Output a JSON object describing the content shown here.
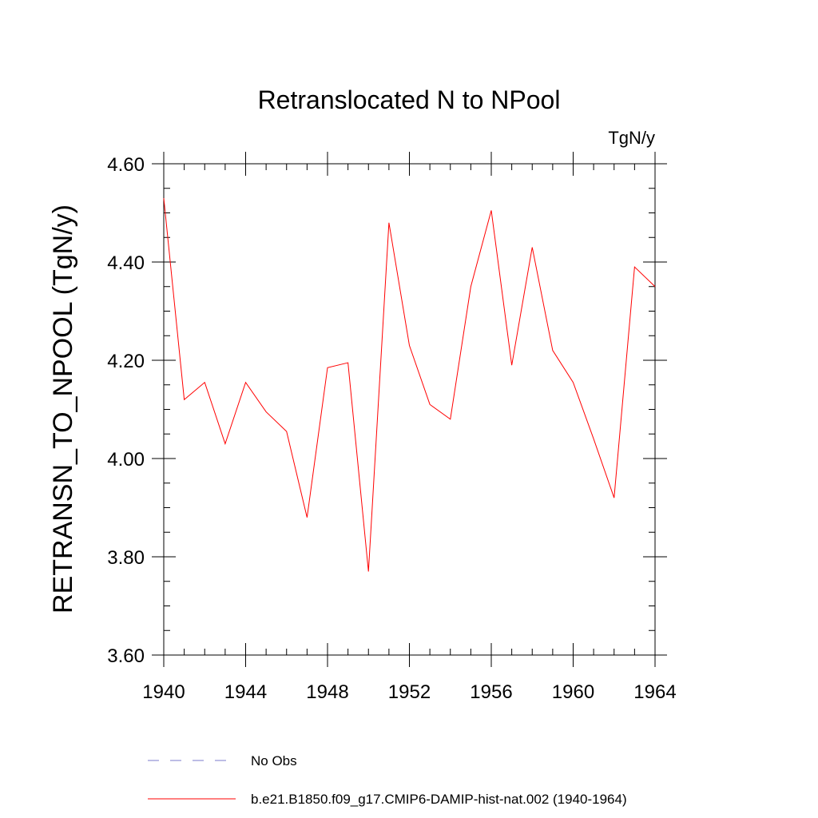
{
  "chart_data": {
    "type": "line",
    "title": "Retranslocated N to NPool",
    "units_label": "TgN/y",
    "ylabel": "RETRANSN_TO_NPOOL  (TgN/y)",
    "xlabel": "",
    "xlim": [
      1940,
      1964
    ],
    "ylim": [
      3.6,
      4.6
    ],
    "x_major_ticks": [
      1940,
      1944,
      1948,
      1952,
      1956,
      1960,
      1964
    ],
    "x_tick_labels": [
      "1940",
      "1944",
      "1948",
      "1952",
      "1956",
      "1960",
      "1964"
    ],
    "x_minor_step": 1,
    "y_major_ticks": [
      3.6,
      3.8,
      4.0,
      4.2,
      4.4,
      4.6
    ],
    "y_tick_labels": [
      "3.60",
      "3.80",
      "4.00",
      "4.20",
      "4.40",
      "4.60"
    ],
    "y_minor_step": 0.05,
    "grid": false,
    "legend_position": "bottom",
    "series": [
      {
        "name": "No Obs",
        "color": "#7b7bcc",
        "dash": "dashed",
        "x": [],
        "y": []
      },
      {
        "name": "b.e21.B1850.f09_g17.CMIP6-DAMIP-hist-nat.002 (1940-1964)",
        "color": "#ff0000",
        "dash": "solid",
        "x": [
          1940,
          1941,
          1942,
          1943,
          1944,
          1945,
          1946,
          1947,
          1948,
          1949,
          1950,
          1951,
          1952,
          1953,
          1954,
          1955,
          1956,
          1957,
          1958,
          1959,
          1960,
          1961,
          1962,
          1963,
          1964
        ],
        "y": [
          4.53,
          4.12,
          4.155,
          4.03,
          4.155,
          4.095,
          4.055,
          3.88,
          4.185,
          4.195,
          3.77,
          4.48,
          4.23,
          4.11,
          4.08,
          4.35,
          4.505,
          4.19,
          4.43,
          4.22,
          4.155,
          4.04,
          3.92,
          4.39,
          4.35
        ]
      }
    ]
  }
}
